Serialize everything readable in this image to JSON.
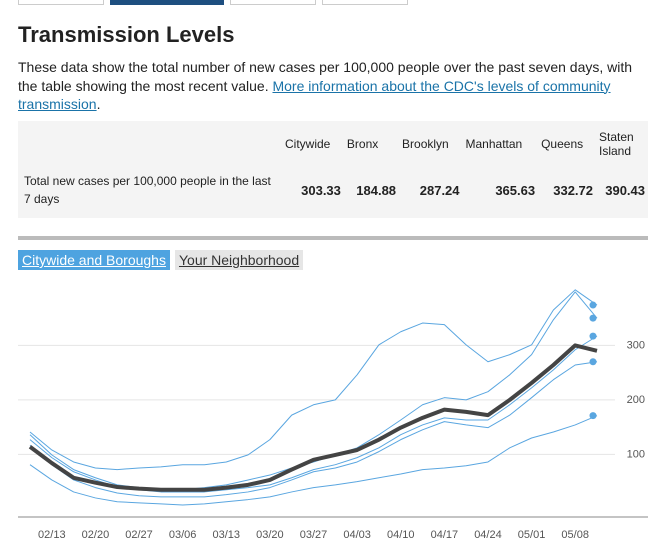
{
  "header": {
    "title": "Transmission Levels"
  },
  "description": {
    "text": "These data show the total number of new cases per 100,000 people over the past seven days, with the table showing the most recent value.",
    "link": "More information about the CDC's levels of community transmission",
    "after": "."
  },
  "table": {
    "columns": [
      "Citywide",
      "Bronx",
      "Brooklyn",
      "Manhattan",
      "Queens",
      "Staten Island"
    ],
    "rows": [
      {
        "label": "Total new cases per 100,000 people in the last 7 days",
        "values": [
          303.33,
          184.88,
          287.24,
          365.63,
          332.72,
          390.43
        ]
      }
    ]
  },
  "tabs": [
    "Citywide and Boroughs",
    "Your Neighborhood"
  ],
  "chart_data": {
    "type": "line",
    "categories": [
      null,
      "02/13",
      null,
      "02/20",
      null,
      "02/27",
      null,
      "03/06",
      null,
      "03/13",
      null,
      "03/20",
      null,
      "03/27",
      null,
      "04/03",
      null,
      "04/10",
      null,
      "04/17",
      null,
      "04/24",
      null,
      "05/01",
      null,
      "05/08",
      null
    ],
    "ylim": [
      -15,
      420
    ],
    "yticks": [
      100,
      200,
      300
    ],
    "grid": true,
    "series": [
      {
        "color": "#5aa6e0",
        "linewidth": 1,
        "end_marker": true,
        "values": [
          141,
          108,
          86,
          75,
          72,
          75,
          77,
          81,
          81,
          86,
          99,
          127,
          172,
          191,
          200,
          246,
          301,
          325,
          341,
          338,
          301,
          270,
          283,
          301,
          365,
          402,
          374
        ]
      },
      {
        "color": "#5aa6e0",
        "linewidth": 1,
        "end_marker": true,
        "values": [
          136,
          99,
          72,
          57,
          44,
          39,
          35,
          35,
          39,
          44,
          53,
          62,
          75,
          86,
          99,
          112,
          136,
          163,
          191,
          204,
          200,
          215,
          246,
          283,
          347,
          398,
          350
        ]
      },
      {
        "color": "#5aa6e0",
        "linewidth": 1,
        "end_marker": true,
        "values": [
          127,
          94,
          68,
          53,
          40,
          35,
          31,
          31,
          31,
          35,
          39,
          44,
          57,
          72,
          81,
          94,
          112,
          136,
          154,
          167,
          163,
          163,
          191,
          222,
          255,
          292,
          317
        ]
      },
      {
        "color": "#5aa6e0",
        "linewidth": 1,
        "end_marker": true,
        "values": [
          117,
          81,
          53,
          39,
          29,
          24,
          22,
          22,
          22,
          26,
          31,
          39,
          53,
          68,
          75,
          86,
          105,
          127,
          145,
          160,
          154,
          149,
          172,
          204,
          237,
          264,
          270
        ]
      },
      {
        "color": "#5aa6e0",
        "linewidth": 1,
        "end_marker": true,
        "values": [
          81,
          53,
          31,
          20,
          13,
          11,
          9,
          7,
          9,
          13,
          17,
          22,
          31,
          39,
          44,
          50,
          57,
          64,
          72,
          75,
          79,
          86,
          112,
          130,
          141,
          154,
          171
        ]
      },
      {
        "color": "#444444",
        "linewidth": 4,
        "end_marker": false,
        "values": [
          114,
          84,
          57,
          48,
          40,
          37,
          35,
          35,
          35,
          39,
          44,
          53,
          72,
          90,
          99,
          108,
          127,
          149,
          167,
          182,
          178,
          172,
          200,
          231,
          264,
          300,
          290
        ]
      }
    ]
  }
}
